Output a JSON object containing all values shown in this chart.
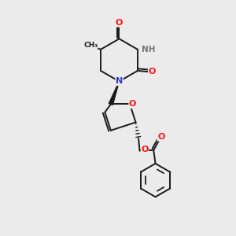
{
  "bg_color": "#ebebeb",
  "atom_colors": {
    "N": "#3333cc",
    "O": "#ff1111",
    "H": "#777777",
    "C": "#000000"
  },
  "bond_color": "#1a1a1a",
  "bond_width": 1.4
}
